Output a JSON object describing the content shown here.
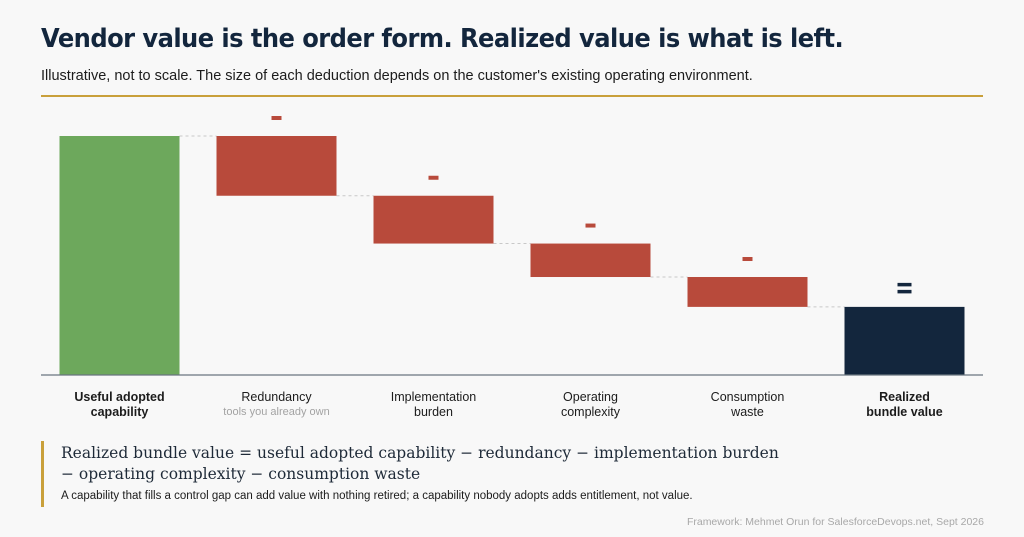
{
  "header": {
    "title": "Vendor value is the order form. Realized value is what is left.",
    "subtitle": "Illustrative, not to scale. The size of each deduction depends on the customer's existing operating environment."
  },
  "chart_data": {
    "type": "waterfall",
    "ylim": [
      0,
      100
    ],
    "colors": {
      "start": "#6da85c",
      "deduction": "#b84a3b",
      "total": "#13263d",
      "connector": "#c8c8c8",
      "axis": "#6a7680"
    },
    "categories": [
      {
        "label": "Useful adopted\ncapability",
        "sublabel": "",
        "kind": "start",
        "value": 100,
        "bold": true
      },
      {
        "label": "Redundancy",
        "sublabel": "tools you already own",
        "kind": "deduction",
        "value": -25,
        "sign": "–",
        "bold": false
      },
      {
        "label": "Implementation\nburden",
        "sublabel": "",
        "kind": "deduction",
        "value": -20,
        "sign": "–",
        "bold": false
      },
      {
        "label": "Operating\ncomplexity",
        "sublabel": "",
        "kind": "deduction",
        "value": -14,
        "sign": "–",
        "bold": false
      },
      {
        "label": "Consumption\nwaste",
        "sublabel": "",
        "kind": "deduction",
        "value": -12.5,
        "sign": "–",
        "bold": false
      },
      {
        "label": "Realized\nbundle value",
        "sublabel": "",
        "kind": "total",
        "value": 28.5,
        "sign": "=",
        "bold": true
      }
    ]
  },
  "footer": {
    "formula_line1": "Realized bundle value = useful adopted capability − redundancy − implementation burden",
    "formula_line2": "− operating complexity − consumption waste",
    "note": "A capability that fills a control gap can add value with nothing retired; a capability nobody adopts adds entitlement, not value.",
    "credit": "Framework: Mehmet Orun for SalesforceDevops.net, Sept 2026"
  }
}
